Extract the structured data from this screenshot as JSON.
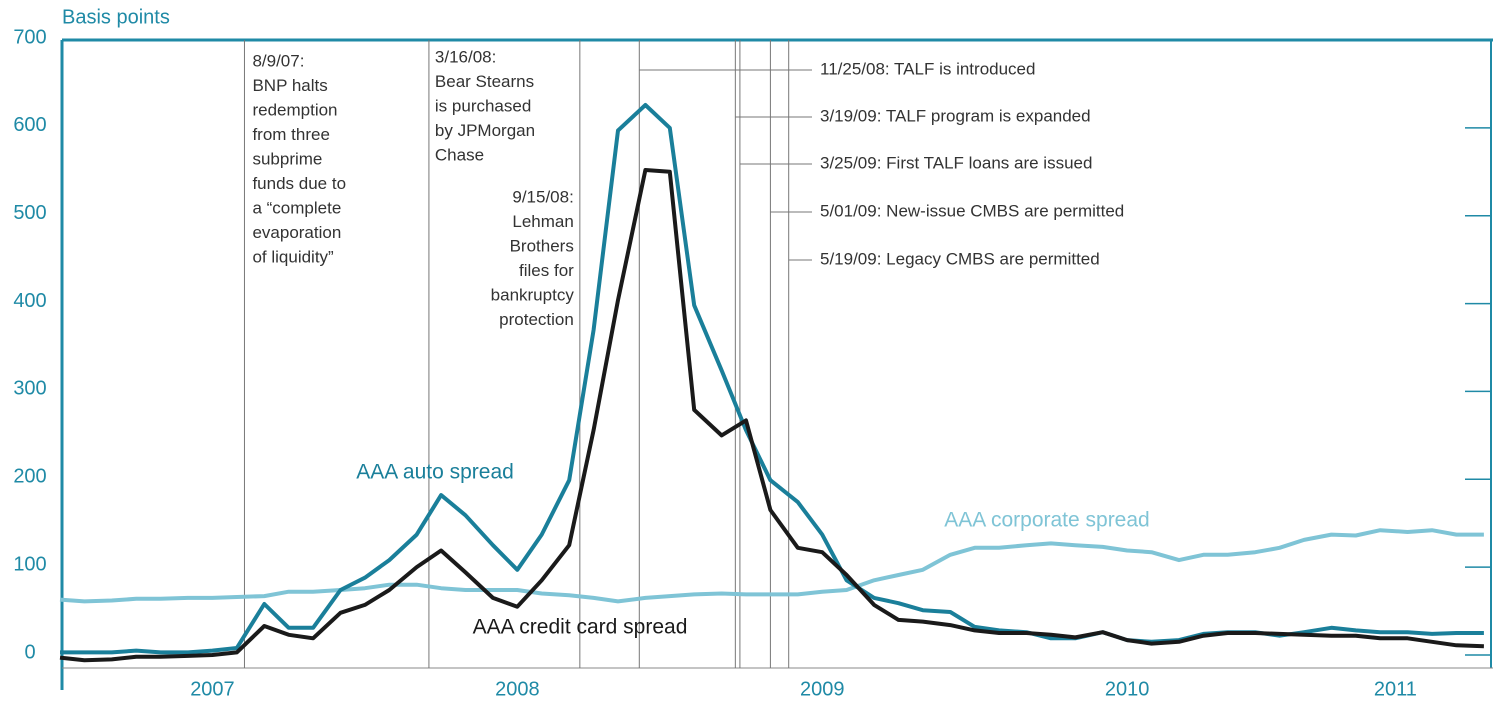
{
  "chart_data": {
    "type": "line",
    "ylabel": "Basis points",
    "xlim": [
      2007,
      2011.7
    ],
    "ylim": [
      0,
      700
    ],
    "yticks": [
      0,
      100,
      200,
      300,
      400,
      500,
      600,
      700
    ],
    "xticks": [
      {
        "value": 2007.5,
        "label": "2007"
      },
      {
        "value": 2008.5,
        "label": "2008"
      },
      {
        "value": 2009.5,
        "label": "2009"
      },
      {
        "value": 2010.5,
        "label": "2010"
      },
      {
        "value": 2011.38,
        "label": "2011"
      }
    ],
    "x": [
      2007,
      2007.08,
      2007.17,
      2007.25,
      2007.33,
      2007.42,
      2007.5,
      2007.58,
      2007.67,
      2007.75,
      2007.83,
      2007.92,
      2008,
      2008.08,
      2008.17,
      2008.25,
      2008.33,
      2008.42,
      2008.5,
      2008.58,
      2008.67,
      2008.75,
      2008.83,
      2008.92,
      2009,
      2009.08,
      2009.17,
      2009.25,
      2009.33,
      2009.42,
      2009.5,
      2009.58,
      2009.67,
      2009.75,
      2009.83,
      2009.92,
      2010,
      2010.08,
      2010.17,
      2010.25,
      2010.33,
      2010.42,
      2010.5,
      2010.58,
      2010.67,
      2010.75,
      2010.83,
      2010.92,
      2011,
      2011.08,
      2011.17,
      2011.25,
      2011.33,
      2011.42,
      2011.5,
      2011.58,
      2011.67
    ],
    "series": [
      {
        "name": "AAA corporate spread",
        "color": "#7fc4d6",
        "values": [
          63,
          61,
          62,
          64,
          64,
          65,
          65,
          66,
          67,
          72,
          72,
          74,
          76,
          80,
          80,
          76,
          74,
          74,
          74,
          70,
          68,
          65,
          61,
          65,
          67,
          69,
          70,
          69,
          69,
          69,
          72,
          74,
          85,
          91,
          97,
          114,
          122,
          122,
          125,
          127,
          125,
          123,
          119,
          117,
          108,
          114,
          114,
          117,
          122,
          131,
          137,
          136,
          142,
          140,
          142,
          137,
          137
        ]
      },
      {
        "name": "AAA auto spread",
        "color": "#1a7f9a",
        "values": [
          3,
          3,
          3,
          5,
          3,
          3,
          5,
          8,
          58,
          31,
          31,
          74,
          88,
          108,
          137,
          182,
          159,
          125,
          97,
          137,
          199,
          370,
          597,
          626,
          600,
          398,
          324,
          256,
          199,
          174,
          137,
          85,
          65,
          59,
          51,
          49,
          32,
          28,
          26,
          19,
          19,
          26,
          17,
          15,
          17,
          24,
          26,
          26,
          22,
          26,
          31,
          28,
          26,
          26,
          24,
          25,
          25
        ]
      },
      {
        "name": "AAA credit card spread",
        "color": "#1a1a1a",
        "values": [
          -3,
          -6,
          -5,
          -2,
          -2,
          -1,
          0,
          3,
          33,
          23,
          19,
          48,
          57,
          74,
          100,
          119,
          94,
          65,
          55,
          85,
          125,
          256,
          404,
          552,
          550,
          279,
          250,
          267,
          165,
          122,
          117,
          91,
          57,
          40,
          38,
          34,
          28,
          25,
          25,
          23,
          20,
          26,
          17,
          13,
          15,
          22,
          25,
          25,
          24,
          23,
          22,
          22,
          19,
          19,
          15,
          11,
          10
        ]
      }
    ],
    "events": [
      {
        "x": 2007.605,
        "text": [
          "8/9/07:",
          "BNP halts",
          "redemption",
          "from three",
          "subprime",
          "funds due to",
          "a “complete",
          "evaporation",
          "of liquidity”"
        ]
      },
      {
        "x": 2008.21,
        "text": [
          "3/16/08:",
          "Bear Stearns",
          "is purchased",
          "by JPMorgan",
          "Chase"
        ]
      },
      {
        "x": 2008.705,
        "text": [
          "9/15/08:",
          "Lehman",
          "Brothers",
          "files for",
          "bankruptcy",
          "protection"
        ]
      },
      {
        "x": 2008.9,
        "text": [
          "11/25/08: TALF is introduced"
        ]
      },
      {
        "x": 2009.215,
        "text": [
          "3/19/09: TALF program is expanded"
        ]
      },
      {
        "x": 2009.23,
        "text": [
          "3/25/09: First TALF loans are issued"
        ]
      },
      {
        "x": 2009.33,
        "text": [
          "5/01/09: New-issue CMBS are permitted"
        ]
      },
      {
        "x": 2009.39,
        "text": [
          "5/19/09: Legacy CMBS are permitted"
        ]
      }
    ]
  }
}
